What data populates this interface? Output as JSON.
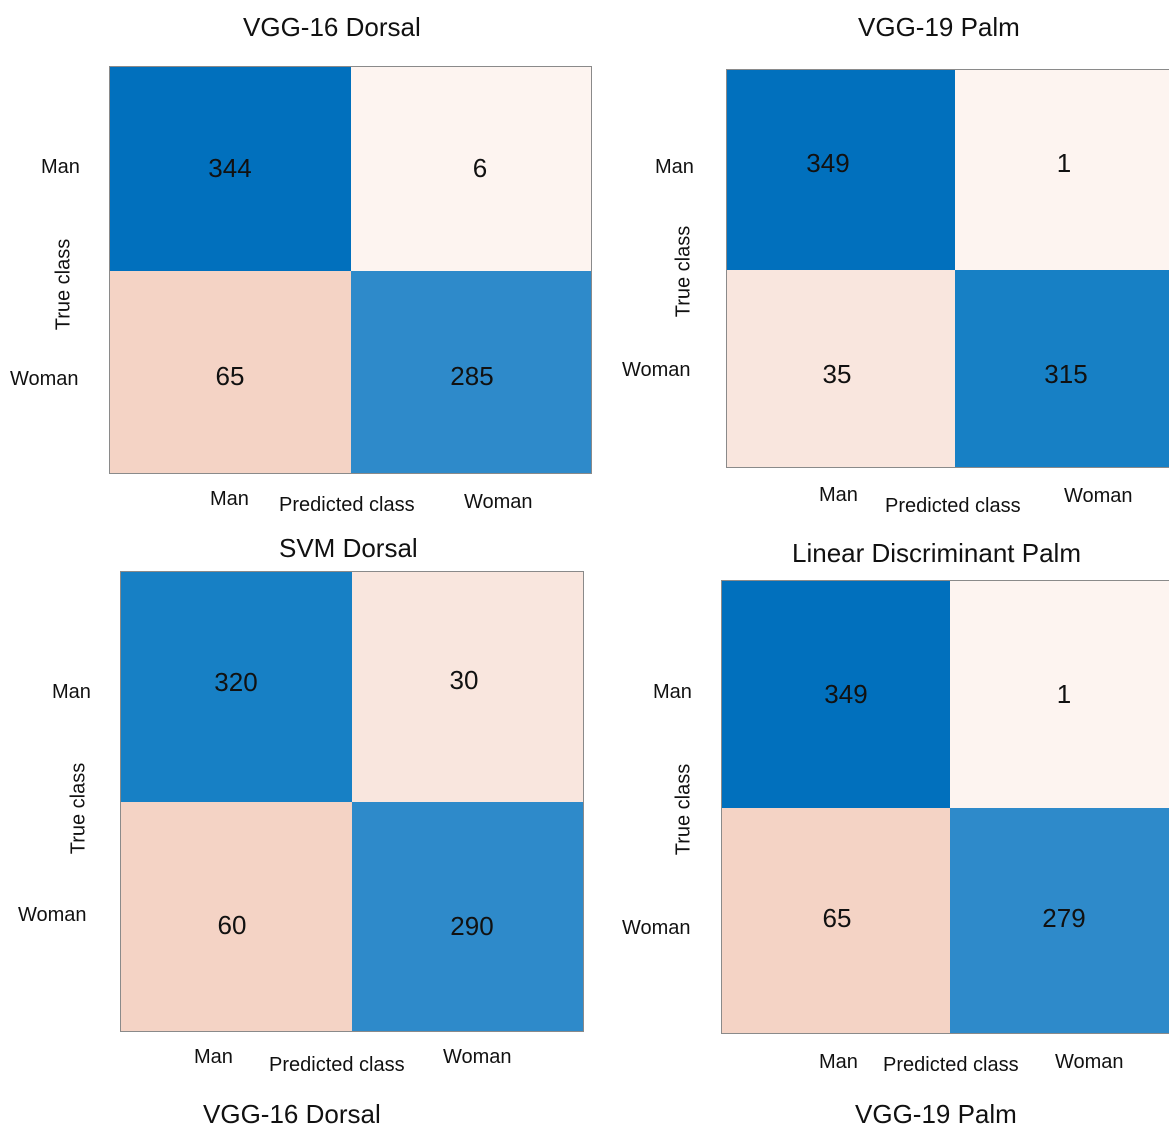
{
  "colors": {
    "high": "#0170bd",
    "low_blue": "#2e8aca",
    "mid_blue": "#1780c5",
    "peach_dark": "#f4d3c5",
    "peach_mid": "#f6ddd1",
    "peach_light": "#f9e6de",
    "near_white": "#fdf4f0"
  },
  "chart_data": [
    {
      "type": "heatmap",
      "title": "VGG-16 Dorsal",
      "xlabel": "Predicted class",
      "ylabel": "True class",
      "x_categories": [
        "Man",
        "Woman"
      ],
      "y_categories": [
        "Man",
        "Woman"
      ],
      "values": [
        [
          344,
          6
        ],
        [
          65,
          285
        ]
      ]
    },
    {
      "type": "heatmap",
      "title": "VGG-19 Palm",
      "xlabel": "Predicted class",
      "ylabel": "True class",
      "x_categories": [
        "Man",
        "Woman"
      ],
      "y_categories": [
        "Man",
        "Woman"
      ],
      "values": [
        [
          349,
          1
        ],
        [
          35,
          315
        ]
      ]
    },
    {
      "type": "heatmap",
      "title": "SVM Dorsal",
      "xlabel": "Predicted class",
      "ylabel": "True class",
      "x_categories": [
        "Man",
        "Woman"
      ],
      "y_categories": [
        "Man",
        "Woman"
      ],
      "values": [
        [
          320,
          30
        ],
        [
          60,
          290
        ]
      ]
    },
    {
      "type": "heatmap",
      "title": "Linear Discriminant Palm",
      "xlabel": "Predicted class",
      "ylabel": "True class",
      "x_categories": [
        "Man",
        "Woman"
      ],
      "y_categories": [
        "Man",
        "Woman"
      ],
      "values": [
        [
          349,
          1
        ],
        [
          65,
          279
        ]
      ]
    }
  ],
  "captions": [
    "VGG-16 Dorsal",
    "VGG-19 Palm"
  ]
}
